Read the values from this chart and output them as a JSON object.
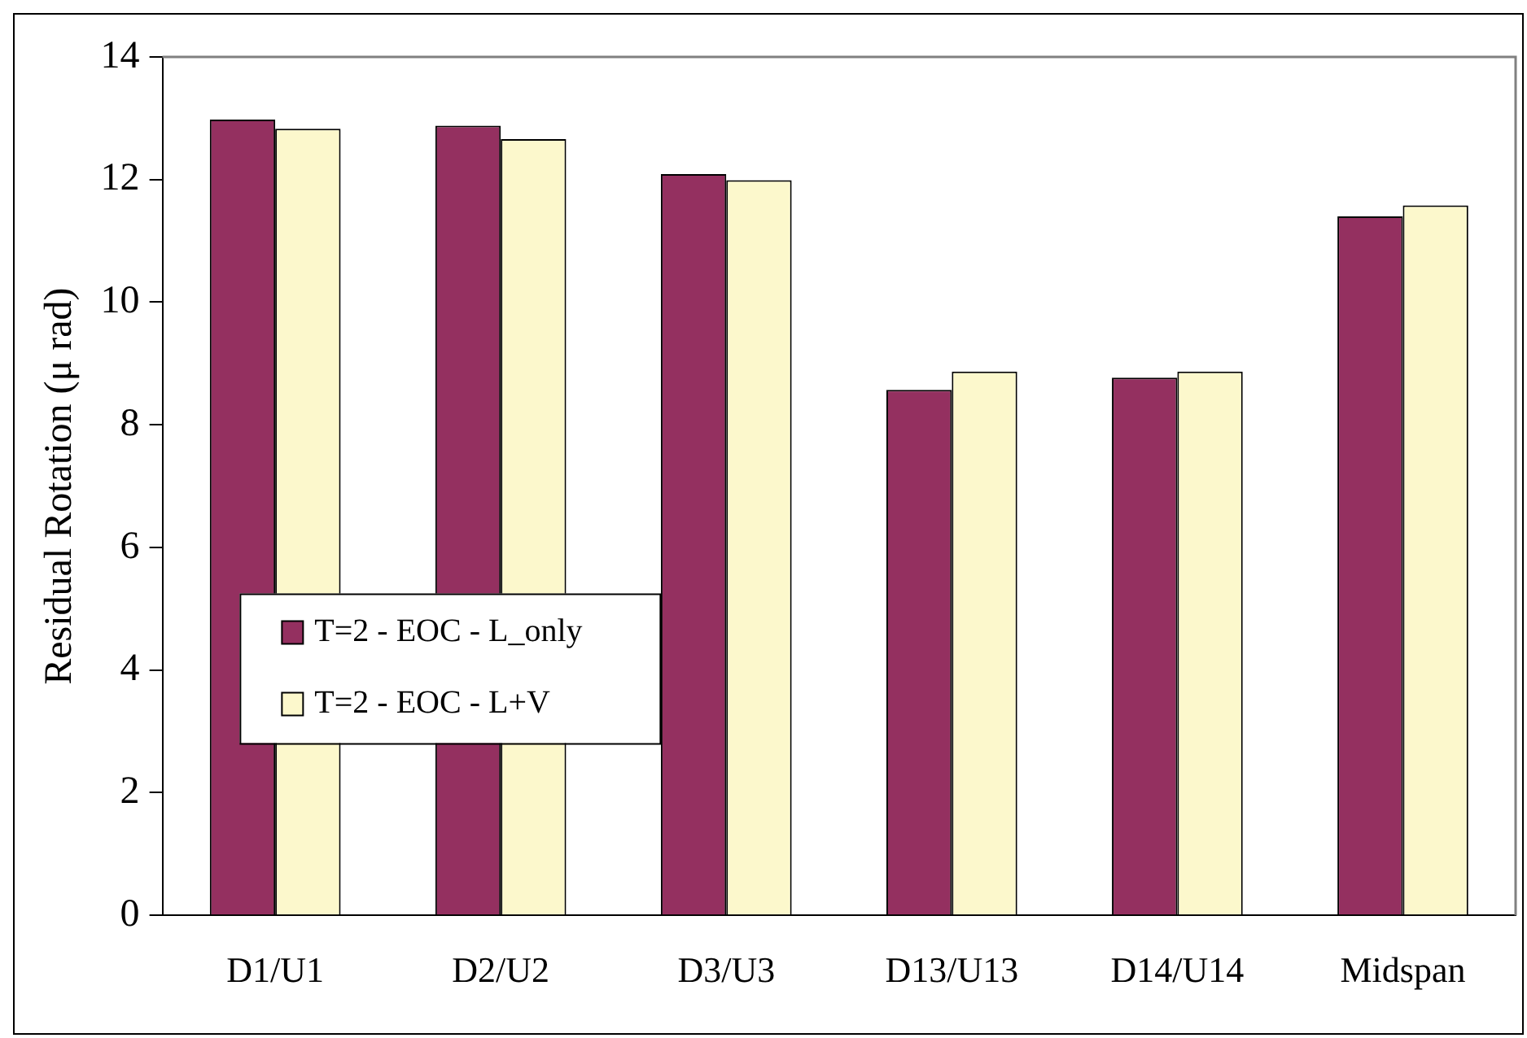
{
  "chart_data": {
    "type": "bar",
    "ylabel": "Residual Rotation (μ rad)",
    "categories": [
      "D1/U1",
      "D2/U2",
      "D3/U3",
      "D13/U13",
      "D14/U14",
      "Midspan"
    ],
    "series": [
      {
        "name": "T=2 - EOC - L_only",
        "color": "#943060",
        "values": [
          12.98,
          12.88,
          12.09,
          8.57,
          8.77,
          11.4
        ]
      },
      {
        "name": "T=2 - EOC - L+V",
        "color": "#fcf8cc",
        "values": [
          12.83,
          12.66,
          11.99,
          8.87,
          8.87,
          11.58
        ]
      }
    ],
    "ylim": [
      0,
      14
    ],
    "yticks": [
      0,
      2,
      4,
      6,
      8,
      10,
      12,
      14
    ],
    "grid": false,
    "legend": "left"
  }
}
